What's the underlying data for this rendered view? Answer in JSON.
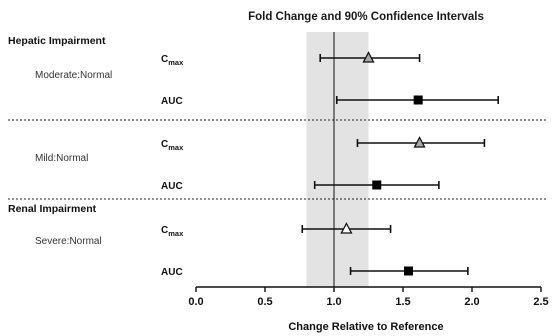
{
  "chart_data": {
    "type": "scatter",
    "title": "Fold Change and 90% Confidence Intervals",
    "xlabel": "Change Relative to Reference",
    "xlim": [
      0.0,
      2.5
    ],
    "xticks": [
      "0.0",
      "0.5",
      "1.0",
      "1.5",
      "2.0",
      "2.5"
    ],
    "reference_line": 1.0,
    "reference_band": [
      0.8,
      1.25
    ],
    "groups": [
      {
        "label": "Hepatic Impairment",
        "sublabel": "Moderate:Normal"
      },
      {
        "label": "",
        "sublabel": "Mild:Normal"
      },
      {
        "label": "Renal Impairment",
        "sublabel": "Severe:Normal"
      }
    ],
    "rows": [
      {
        "group": 0,
        "metric": "C",
        "sub": "max",
        "estimate": 1.25,
        "lower": 0.9,
        "upper": 1.62,
        "marker": "triangle-gray"
      },
      {
        "group": 0,
        "metric": "AUC",
        "sub": "",
        "estimate": 1.61,
        "lower": 1.02,
        "upper": 2.19,
        "marker": "square-black"
      },
      {
        "group": 1,
        "metric": "C",
        "sub": "max",
        "estimate": 1.62,
        "lower": 1.17,
        "upper": 2.09,
        "marker": "triangle-gray"
      },
      {
        "group": 1,
        "metric": "AUC",
        "sub": "",
        "estimate": 1.31,
        "lower": 0.86,
        "upper": 1.76,
        "marker": "square-black"
      },
      {
        "group": 2,
        "metric": "C",
        "sub": "max",
        "estimate": 1.09,
        "lower": 0.77,
        "upper": 1.41,
        "marker": "triangle-white"
      },
      {
        "group": 2,
        "metric": "AUC",
        "sub": "",
        "estimate": 1.54,
        "lower": 1.12,
        "upper": 1.97,
        "marker": "square-black"
      }
    ],
    "grid": false,
    "colors": {
      "band": "#e3e3e3",
      "line": "#111111",
      "triangle_gray": "#a9a9a9"
    }
  }
}
